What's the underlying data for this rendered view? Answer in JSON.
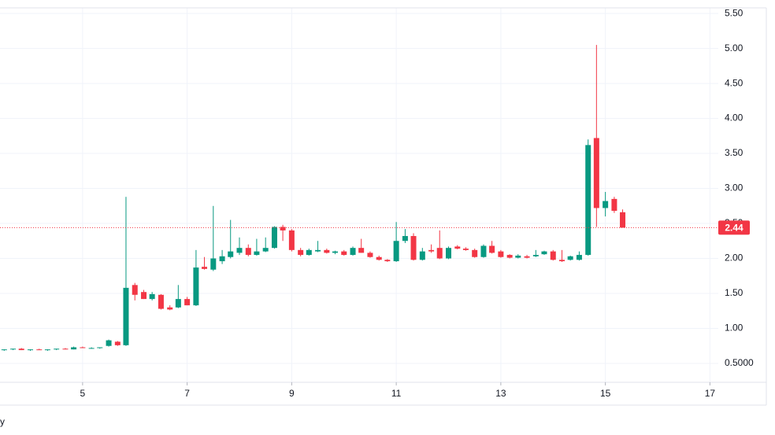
{
  "chart_data": {
    "type": "candlestick",
    "x": [
      3.5,
      3.67,
      3.83,
      4,
      4.17,
      4.33,
      4.5,
      4.67,
      4.83,
      5,
      5.17,
      5.33,
      5.5,
      5.67,
      5.83,
      6,
      6.17,
      6.33,
      6.5,
      6.67,
      6.83,
      7,
      7.17,
      7.33,
      7.5,
      7.67,
      7.83,
      8,
      8.17,
      8.33,
      8.5,
      8.67,
      8.83,
      9,
      9.17,
      9.33,
      9.5,
      9.67,
      9.83,
      10,
      10.17,
      10.33,
      10.5,
      10.67,
      10.83,
      11,
      11.17,
      11.33,
      11.5,
      11.67,
      11.83,
      12,
      12.17,
      12.33,
      12.5,
      12.67,
      12.83,
      13,
      13.17,
      13.33,
      13.5,
      13.67,
      13.83,
      14,
      14.17,
      14.33,
      14.5,
      14.67,
      14.83,
      15,
      15.17,
      15.33
    ],
    "open": [
      0.69,
      0.7,
      0.71,
      0.69,
      0.7,
      0.69,
      0.7,
      0.71,
      0.7,
      0.73,
      0.72,
      0.72,
      0.75,
      0.81,
      0.76,
      1.62,
      1.52,
      1.42,
      1.48,
      1.3,
      1.3,
      1.42,
      1.33,
      1.88,
      1.84,
      1.96,
      2.02,
      2.08,
      2.15,
      2.05,
      2.1,
      2.15,
      2.45,
      2.4,
      2.12,
      2.05,
      2.1,
      2.12,
      2.08,
      2.1,
      2.05,
      2.15,
      2.08,
      2.02,
      1.98,
      1.96,
      2.25,
      2.32,
      1.98,
      2.12,
      2.15,
      2.0,
      2.17,
      2.14,
      2.12,
      2.02,
      2.18,
      2.1,
      2.05,
      2.01,
      2.03,
      2.03,
      2.06,
      2.1,
      1.98,
      1.98,
      1.98,
      2.05,
      3.72,
      2.72,
      2.85,
      2.66
    ],
    "high": [
      0.7,
      0.71,
      0.72,
      0.7,
      0.71,
      0.7,
      0.71,
      0.72,
      0.74,
      0.74,
      0.73,
      0.73,
      0.84,
      0.82,
      2.88,
      1.65,
      1.55,
      1.52,
      1.49,
      1.33,
      1.62,
      1.45,
      2.12,
      2.02,
      2.75,
      2.12,
      2.55,
      2.3,
      2.2,
      2.28,
      2.3,
      2.46,
      2.48,
      2.42,
      2.15,
      2.14,
      2.25,
      2.14,
      2.11,
      2.12,
      2.17,
      2.28,
      2.1,
      2.04,
      1.99,
      2.52,
      2.42,
      2.36,
      2.15,
      2.2,
      2.4,
      2.17,
      2.19,
      2.16,
      2.14,
      2.2,
      2.25,
      2.12,
      2.06,
      2.06,
      2.05,
      2.12,
      2.11,
      2.12,
      2.12,
      2.04,
      2.1,
      3.7,
      5.05,
      2.95,
      2.88,
      2.7
    ],
    "low": [
      0.68,
      0.69,
      0.69,
      0.68,
      0.69,
      0.68,
      0.69,
      0.7,
      0.7,
      0.72,
      0.71,
      0.71,
      0.74,
      0.75,
      0.75,
      1.4,
      1.42,
      1.4,
      1.27,
      1.26,
      1.29,
      1.33,
      1.32,
      1.84,
      1.82,
      1.92,
      2.0,
      2.05,
      2.03,
      2.04,
      2.09,
      2.14,
      2.25,
      2.1,
      2.03,
      2.04,
      2.09,
      2.07,
      2.06,
      2.04,
      2.04,
      2.08,
      2.01,
      1.97,
      1.95,
      1.95,
      2.22,
      1.97,
      1.97,
      2.08,
      1.99,
      1.99,
      2.13,
      2.11,
      2.01,
      2.01,
      2.07,
      2.01,
      2.0,
      2.0,
      2.0,
      2.02,
      2.05,
      1.97,
      1.95,
      1.97,
      1.97,
      2.04,
      2.45,
      2.6,
      2.65,
      2.44
    ],
    "close": [
      0.7,
      0.71,
      0.69,
      0.7,
      0.69,
      0.7,
      0.71,
      0.7,
      0.73,
      0.72,
      0.72,
      0.73,
      0.83,
      0.76,
      1.58,
      1.48,
      1.42,
      1.49,
      1.28,
      1.27,
      1.42,
      1.33,
      1.87,
      1.85,
      2.0,
      2.03,
      2.1,
      2.15,
      2.05,
      2.1,
      2.15,
      2.45,
      2.4,
      2.12,
      2.05,
      2.12,
      2.12,
      2.08,
      2.1,
      2.05,
      2.15,
      2.08,
      2.02,
      1.98,
      1.96,
      2.25,
      2.32,
      1.98,
      2.1,
      2.1,
      2.0,
      2.15,
      2.14,
      2.12,
      2.02,
      2.18,
      2.08,
      2.02,
      2.01,
      2.04,
      2.01,
      2.05,
      2.1,
      1.98,
      1.96,
      2.03,
      2.05,
      3.62,
      2.72,
      2.82,
      2.68,
      2.44
    ],
    "up_color": "#089981",
    "down_color": "#f23645",
    "xlim": [
      3.42,
      17.16
    ],
    "ylim": [
      0.23,
      5.58
    ],
    "xticks": [
      5,
      7,
      9,
      11,
      13,
      15,
      17
    ],
    "yticks": [
      {
        "value": 0.5,
        "label": "0.5000"
      },
      {
        "value": 1,
        "label": "1.00"
      },
      {
        "value": 1.5,
        "label": "1.50"
      },
      {
        "value": 2,
        "label": "2.00"
      },
      {
        "value": 2.5,
        "label": "2.50"
      },
      {
        "value": 3,
        "label": "3.00"
      },
      {
        "value": 3.5,
        "label": "3.50"
      },
      {
        "value": 4,
        "label": "4.00"
      },
      {
        "value": 4.5,
        "label": "4.50"
      },
      {
        "value": 5,
        "label": "5.00"
      },
      {
        "value": 5.5,
        "label": "5.50"
      }
    ],
    "grid": true,
    "last_price": 2.44,
    "last_price_color": "#f23645",
    "corner_label": "y"
  }
}
